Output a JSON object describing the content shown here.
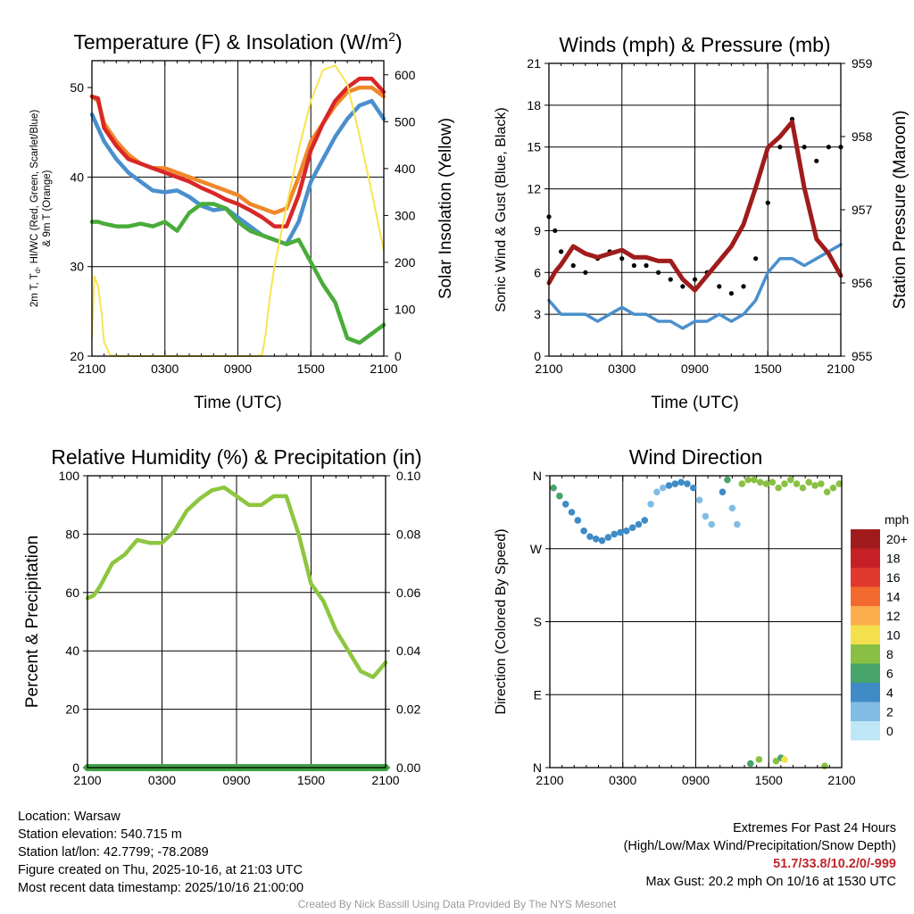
{
  "chart_data": [
    {
      "id": "temperature",
      "type": "line",
      "title": "Temperature (F) & Insolation (W/m²)",
      "xlabel": "Time (UTC)",
      "ylabel": "2m T, Td, HI/WC (Red, Green, Scarlet/Blue) & 9m T (Orange)",
      "ylabel_lines": [
        "2m T, T",
        "d",
        ", HI/WC (Red, Green, Scarlet/Blue)",
        "& 9m T (Orange)"
      ],
      "ylabel_right": "Solar Insolation (Yellow)",
      "xlim": [
        0,
        24
      ],
      "ylim": [
        20,
        53
      ],
      "ylim_right": [
        0,
        630
      ],
      "xticks": [
        0,
        6,
        12,
        18,
        24
      ],
      "yticks": [
        20,
        30,
        40,
        50
      ],
      "yticks_right": [
        0,
        100,
        200,
        300,
        400,
        500,
        600
      ],
      "x_tick_labels": [
        "2100",
        "0300",
        "0900",
        "1500",
        "2100"
      ],
      "series": [
        {
          "name": "9m T",
          "color": "#f0882a",
          "axis": "left",
          "x": [
            0,
            0.5,
            1,
            2,
            3,
            4,
            5,
            6,
            7,
            8,
            9,
            10,
            11,
            12,
            13,
            14,
            15,
            16,
            17,
            18,
            19,
            20,
            21,
            22,
            23,
            24
          ],
          "values": [
            49,
            48.5,
            46,
            44,
            42.5,
            41.5,
            41,
            41,
            40.5,
            40,
            39.5,
            39,
            38.5,
            38,
            37,
            36.5,
            36,
            36.5,
            40,
            44,
            46,
            48,
            49.5,
            50,
            50,
            49
          ]
        },
        {
          "name": "2m T",
          "color": "#d92727",
          "axis": "left",
          "x": [
            0,
            0.5,
            1,
            2,
            3,
            4,
            5,
            6,
            7,
            8,
            9,
            10,
            11,
            12,
            13,
            14,
            15,
            16,
            17,
            18,
            19,
            20,
            21,
            22,
            23,
            24
          ],
          "values": [
            49,
            48.8,
            45.5,
            43.5,
            42,
            41.5,
            41,
            40.5,
            40,
            39.5,
            38.8,
            38.2,
            37.5,
            37,
            36.3,
            35.5,
            34.5,
            34.5,
            38,
            43,
            46,
            48.5,
            50,
            51,
            51,
            49.5
          ]
        },
        {
          "name": "HI/WC",
          "color": "#4a8fcd",
          "axis": "left",
          "x": [
            0,
            0.5,
            1,
            2,
            3,
            4,
            5,
            6,
            7,
            8,
            9,
            10,
            11,
            12,
            13,
            14,
            15,
            16,
            17,
            18,
            19,
            20,
            21,
            22,
            23,
            24
          ],
          "values": [
            47,
            45.5,
            44,
            42,
            40.5,
            39.5,
            38.5,
            38.3,
            38.5,
            37.8,
            36.8,
            36.3,
            36.5,
            35.5,
            34.5,
            33.5,
            33,
            32.5,
            35,
            39.5,
            42,
            44.5,
            46.5,
            48,
            48.5,
            46.5
          ]
        },
        {
          "name": "Td",
          "color": "#4aac3a",
          "axis": "left",
          "x": [
            0,
            0.5,
            1,
            2,
            3,
            4,
            5,
            6,
            7,
            8,
            9,
            10,
            11,
            12,
            13,
            14,
            15,
            16,
            17,
            18,
            19,
            20,
            21,
            22,
            23,
            24
          ],
          "values": [
            35,
            35,
            34.8,
            34.5,
            34.5,
            34.8,
            34.5,
            35,
            34,
            36,
            37,
            37,
            36.5,
            35,
            34,
            33.5,
            33,
            32.5,
            33,
            30.5,
            28,
            26,
            22,
            21.5,
            22.5,
            23.5
          ]
        },
        {
          "name": "Solar Insolation",
          "color": "#f8e34e",
          "axis": "right",
          "x": [
            0,
            0.2,
            0.5,
            0.8,
            1,
            1.5,
            2,
            6,
            10,
            12,
            13.5,
            14,
            14.3,
            14.6,
            15,
            16,
            17,
            18,
            19,
            20,
            21,
            22,
            23,
            24
          ],
          "values": [
            40,
            170,
            150,
            90,
            30,
            2,
            0,
            0,
            0,
            0,
            0,
            3,
            50,
            120,
            190,
            320,
            440,
            545,
            610,
            620,
            580,
            470,
            350,
            225
          ]
        }
      ]
    },
    {
      "id": "winds",
      "type": "line",
      "title": "Winds (mph) & Pressure (mb)",
      "xlabel": "Time (UTC)",
      "ylabel": "Sonic Wind & Gust (Blue, Black)",
      "ylabel_right": "Station Pressure (Maroon)",
      "xlim": [
        0,
        24
      ],
      "ylim": [
        0,
        21
      ],
      "ylim_right": [
        955,
        959
      ],
      "xticks": [
        0,
        6,
        12,
        18,
        24
      ],
      "yticks": [
        0,
        3,
        6,
        9,
        12,
        15,
        18,
        21
      ],
      "yticks_right": [
        955,
        956,
        957,
        958,
        959
      ],
      "x_tick_labels": [
        "2100",
        "0300",
        "0900",
        "1500",
        "2100"
      ],
      "series": [
        {
          "name": "Sonic Wind",
          "color": "#4a8fcd",
          "axis": "left",
          "x": [
            0,
            0.5,
            1,
            2,
            3,
            4,
            5,
            6,
            7,
            8,
            9,
            10,
            11,
            12,
            13,
            14,
            15,
            16,
            17,
            18,
            19,
            20,
            21,
            22,
            23,
            24
          ],
          "values": [
            4,
            3.5,
            3,
            3,
            3,
            2.5,
            3,
            3.5,
            3,
            3,
            2.5,
            2.5,
            2,
            2.5,
            2.5,
            3,
            2.5,
            3,
            4,
            6,
            7,
            7,
            6.5,
            7,
            7.5,
            8
          ]
        },
        {
          "name": "Gust",
          "color": "#000000",
          "axis": "left",
          "style": "dots",
          "x": [
            0,
            0.5,
            1,
            2,
            3,
            4,
            5,
            6,
            7,
            8,
            9,
            10,
            11,
            12,
            13,
            14,
            15,
            16,
            17,
            18,
            19,
            20,
            21,
            22,
            23,
            24
          ],
          "values": [
            10,
            9,
            7.5,
            6.5,
            6,
            7,
            7.5,
            7,
            6.5,
            6.5,
            6,
            5.5,
            5,
            5.5,
            6,
            5,
            4.5,
            5,
            7,
            11,
            15,
            17,
            15,
            14,
            15,
            15
          ]
        },
        {
          "name": "Station Pressure",
          "color": "#a01c1c",
          "axis": "right",
          "x": [
            0,
            0.5,
            1,
            2,
            3,
            4,
            5,
            6,
            7,
            8,
            9,
            10,
            11,
            12,
            13,
            14,
            15,
            16,
            17,
            18,
            19,
            20,
            21,
            22,
            23,
            24
          ],
          "values": [
            956,
            956.15,
            956.25,
            956.5,
            956.4,
            956.35,
            956.4,
            956.45,
            956.35,
            956.35,
            956.3,
            956.3,
            956.05,
            955.9,
            956.1,
            956.3,
            956.5,
            956.8,
            957.3,
            957.85,
            958,
            958.2,
            957.3,
            956.6,
            956.4,
            956.1
          ]
        }
      ]
    },
    {
      "id": "humidity",
      "type": "line",
      "title": "Relative Humidity (%) & Precipitation (in)",
      "xlabel": "",
      "ylabel": "Percent & Precipitation",
      "xlim": [
        0,
        24
      ],
      "ylim": [
        0,
        100
      ],
      "ylim_right": [
        0,
        0.1
      ],
      "xticks": [
        0,
        6,
        12,
        18,
        24
      ],
      "yticks": [
        0,
        20,
        40,
        60,
        80,
        100
      ],
      "yticks_right": [
        "0.00",
        "0.02",
        "0.04",
        "0.06",
        "0.08",
        "0.10"
      ],
      "x_tick_labels": [
        "2100",
        "0300",
        "0900",
        "1500",
        "2100"
      ],
      "series": [
        {
          "name": "Relative Humidity",
          "color": "#8dc63f",
          "axis": "left",
          "x": [
            0,
            0.5,
            1,
            2,
            3,
            4,
            5,
            6,
            7,
            8,
            9,
            10,
            11,
            12,
            13,
            14,
            15,
            16,
            17,
            18,
            19,
            20,
            21,
            22,
            23,
            24
          ],
          "values": [
            58,
            59,
            62,
            70,
            73,
            78,
            77,
            77,
            81,
            88,
            92,
            95,
            96,
            93,
            90,
            90,
            93,
            93,
            80,
            63,
            57,
            47,
            40,
            33,
            31,
            36
          ]
        },
        {
          "name": "Precipitation",
          "color": "#3fa044",
          "axis": "right",
          "x": [
            0,
            24
          ],
          "values": [
            0,
            0
          ]
        }
      ]
    },
    {
      "id": "wind-direction",
      "type": "scatter",
      "title": "Wind Direction",
      "ylabel": "Direction (Colored By Speed)",
      "xlim": [
        0,
        24
      ],
      "ylim": [
        0,
        360
      ],
      "xticks": [
        0,
        6,
        12,
        18,
        24
      ],
      "yticks": [
        0,
        90,
        180,
        270,
        360
      ],
      "ytick_labels": [
        "N",
        "E",
        "S",
        "W",
        "N"
      ],
      "x_tick_labels": [
        "2100",
        "0300",
        "0900",
        "1500",
        "2100"
      ],
      "legend_title": "mph",
      "legend_labels": [
        "20+",
        "18",
        "16",
        "14",
        "12",
        "10",
        "8",
        "6",
        "4",
        "2",
        "0"
      ],
      "legend_colors": [
        "#a01b1b",
        "#c62027",
        "#e0392e",
        "#f26a2d",
        "#fbad4b",
        "#f4e04d",
        "#89c043",
        "#47a46b",
        "#3f8bc6",
        "#82bce4",
        "#bfe6f7"
      ],
      "x": [
        0.3,
        0.8,
        1.3,
        1.8,
        2.3,
        2.8,
        3.3,
        3.8,
        4.3,
        4.8,
        5.3,
        5.8,
        6.3,
        6.8,
        7.3,
        7.8,
        8.3,
        8.8,
        9.3,
        9.8,
        10.3,
        10.8,
        11.3,
        11.8,
        12.3,
        12.8,
        13.3,
        14.2,
        14.6,
        15.0,
        15.4,
        15.8,
        16.3,
        16.8,
        17.3,
        17.8,
        18.3,
        18.8,
        19.3,
        19.8,
        20.3,
        20.8,
        21.3,
        21.8,
        22.3,
        22.8,
        23.3,
        23.8,
        16.5,
        17.2,
        18.6,
        19.0,
        19.3,
        22.6
      ],
      "values": [
        345,
        335,
        325,
        315,
        305,
        292,
        285,
        282,
        280,
        284,
        288,
        290,
        292,
        296,
        300,
        305,
        325,
        340,
        345,
        348,
        350,
        352,
        350,
        345,
        330,
        310,
        300,
        340,
        355,
        320,
        300,
        350,
        355,
        355,
        352,
        350,
        352,
        345,
        350,
        355,
        350,
        345,
        352,
        348,
        350,
        340,
        345,
        350,
        5,
        10,
        8,
        12,
        10,
        2
      ],
      "speed": [
        5,
        5,
        4,
        4,
        4,
        3,
        3,
        3,
        3,
        4,
        3,
        3,
        3,
        3,
        3,
        3,
        2,
        2,
        2,
        3,
        3,
        3,
        3,
        3,
        2,
        2,
        2,
        4,
        5,
        2,
        2,
        7,
        7,
        7,
        7,
        8,
        7,
        7,
        8,
        8,
        8,
        7,
        7,
        8,
        8,
        8,
        7,
        7,
        5,
        7,
        8,
        6,
        10,
        7
      ]
    }
  ],
  "info": {
    "location": "Location: Warsaw",
    "elevation": "Station elevation: 540.715 m",
    "latlon": "Station lat/lon: 42.7799; -78.2089",
    "created": "Figure created on Thu, 2025-10-16, at 21:03 UTC",
    "recent": "Most recent data timestamp: 2025/10/16 21:00:00"
  },
  "extremes": {
    "heading": "Extremes For Past 24 Hours",
    "legend": "(High/Low/Max Wind/Precipitation/Snow Depth)",
    "values": "51.7/33.8/10.2/0/-999",
    "max_gust": "Max Gust: 20.2 mph On 10/16 at 1530 UTC"
  },
  "credit": "Created By Nick Bassill Using Data Provided By The NYS Mesonet"
}
